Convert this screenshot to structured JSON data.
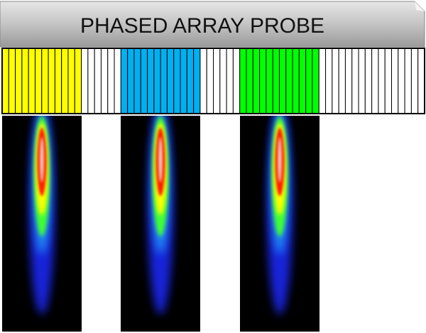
{
  "header": {
    "title": "PHASED ARRAY PROBE"
  }
}
